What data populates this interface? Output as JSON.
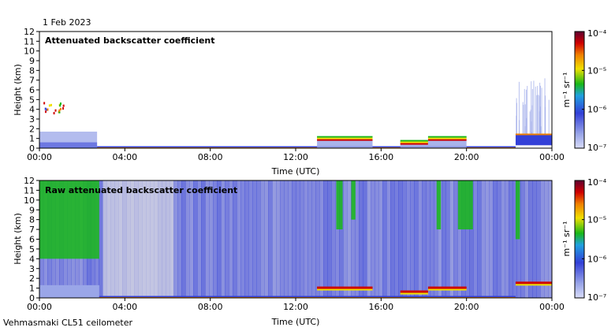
{
  "date_label": "1 Feb 2023",
  "footer_label": "Vehmasmaki CL51 ceilometer",
  "colors": {
    "bg_white": "#ffffff",
    "low_signal": "#9aa6e8",
    "mid_signal": "#3340d8",
    "green": "#18b818",
    "yellow": "#f0e000",
    "orange": "#f08000",
    "red": "#d00000",
    "darkred": "#600030"
  },
  "chart_data": [
    {
      "type": "heatmap",
      "title": "Attenuated backscatter coefficient",
      "xlabel": "Time (UTC)",
      "ylabel": "Height (km)",
      "x_ticks": [
        "00:00",
        "04:00",
        "08:00",
        "12:00",
        "16:00",
        "20:00",
        "00:00"
      ],
      "y_ticks": [
        0,
        1,
        2,
        3,
        4,
        5,
        6,
        7,
        8,
        9,
        10,
        11,
        12
      ],
      "xlim_hours": [
        0,
        24
      ],
      "ylim_km": [
        0,
        12
      ],
      "colorbar": {
        "label": "m⁻¹ sr⁻¹",
        "scale": "log",
        "ticks": [
          "10⁻⁷",
          "10⁻⁶",
          "10⁻⁵",
          "10⁻⁴"
        ],
        "range": [
          1e-07,
          0.0001
        ]
      },
      "features": [
        {
          "kind": "boundary-layer",
          "t_start": 0,
          "t_end": 2.7,
          "h_top_km": 1.7
        },
        {
          "kind": "elevated-aerosol",
          "t_start": 0.0,
          "t_end": 1.1,
          "h_bottom_km": 3.6,
          "h_top_km": 4.9
        },
        {
          "kind": "surface-layer",
          "t_start": 2.7,
          "t_end": 22.3,
          "h_top_km": 0.2
        },
        {
          "kind": "cloud-base",
          "t_start": 13.0,
          "t_end": 15.6,
          "h_km": 1.0
        },
        {
          "kind": "cloud-base",
          "t_start": 16.9,
          "t_end": 18.2,
          "h_km": 0.6
        },
        {
          "kind": "cloud-base",
          "t_start": 18.2,
          "t_end": 20.0,
          "h_km": 1.0
        },
        {
          "kind": "cloud-column",
          "t_start": 22.3,
          "t_end": 24.0,
          "h_top_km": 7.2
        }
      ]
    },
    {
      "type": "heatmap",
      "title": "Raw attenuated backscatter coefficient",
      "xlabel": "Time (UTC)",
      "ylabel": "Height (km)",
      "x_ticks": [
        "00:00",
        "04:00",
        "08:00",
        "12:00",
        "16:00",
        "20:00",
        "00:00"
      ],
      "y_ticks": [
        0,
        1,
        2,
        3,
        4,
        5,
        6,
        7,
        8,
        9,
        10,
        11,
        12
      ],
      "xlim_hours": [
        0,
        24
      ],
      "ylim_km": [
        0,
        12
      ],
      "colorbar": {
        "label": "m⁻¹ sr⁻¹",
        "scale": "log",
        "ticks": [
          "10⁻⁷",
          "10⁻⁶",
          "10⁻⁵",
          "10⁻⁴"
        ],
        "range": [
          1e-07,
          0.0001
        ]
      },
      "features": [
        {
          "kind": "noise-green",
          "t_start": 0.0,
          "t_end": 2.8,
          "h_bottom_km": 4.0,
          "h_top_km": 12.0
        },
        {
          "kind": "noise-green",
          "t_start": 13.9,
          "t_end": 14.2,
          "h_bottom_km": 7.0,
          "h_top_km": 12.0
        },
        {
          "kind": "noise-green",
          "t_start": 14.6,
          "t_end": 14.8,
          "h_bottom_km": 8.0,
          "h_top_km": 12.0
        },
        {
          "kind": "noise-green",
          "t_start": 18.6,
          "t_end": 18.8,
          "h_bottom_km": 7.0,
          "h_top_km": 12.0
        },
        {
          "kind": "noise-green",
          "t_start": 19.6,
          "t_end": 20.3,
          "h_bottom_km": 7.0,
          "h_top_km": 12.0
        },
        {
          "kind": "noise-green",
          "t_start": 22.3,
          "t_end": 22.5,
          "h_bottom_km": 6.0,
          "h_top_km": 12.0
        }
      ]
    }
  ]
}
